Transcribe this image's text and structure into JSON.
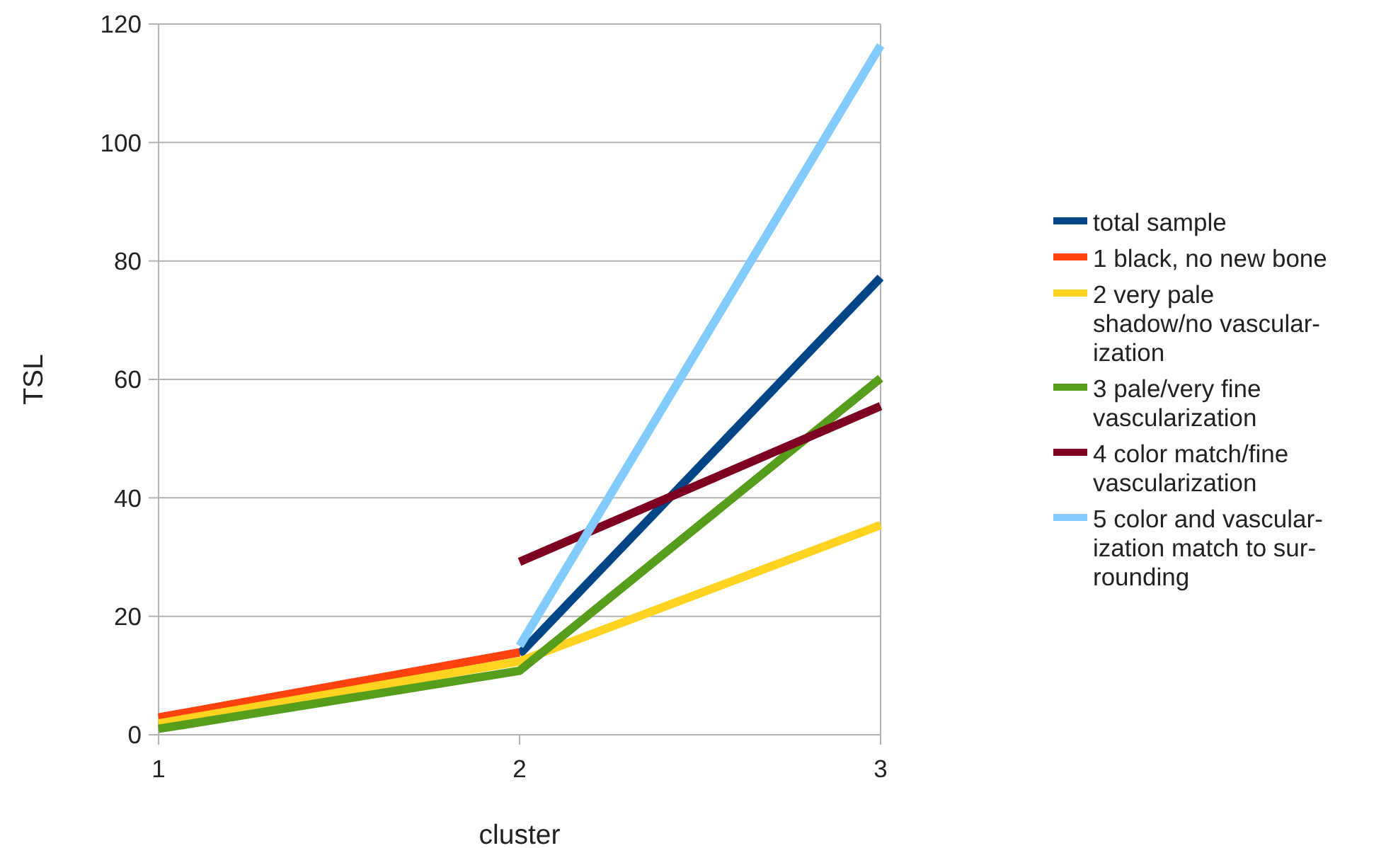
{
  "chart_data": {
    "type": "line",
    "xlabel": "cluster",
    "ylabel": "TSL",
    "x": [
      1,
      2,
      3
    ],
    "xlim": [
      1,
      3
    ],
    "xticks": [
      1,
      2,
      3
    ],
    "ylim": [
      0,
      120
    ],
    "yticks": [
      0,
      20,
      40,
      60,
      80,
      100,
      120
    ],
    "grid": "y",
    "legend": "right",
    "marker": "none",
    "line_style": "solid",
    "series": [
      {
        "name": "total sample",
        "color": "#004586",
        "values": [
          null,
          13.6,
          77.2
        ]
      },
      {
        "name": "1 black, no new bone",
        "color": "#ff420e",
        "values": [
          2.9,
          13.9,
          null
        ]
      },
      {
        "name": "2 very pale\nshadow/no vascular-\nization",
        "color": "#ffd320",
        "values": [
          1.9,
          12.4,
          35.4
        ]
      },
      {
        "name": "3 pale/very fine\nvascularization",
        "color": "#579d1c",
        "values": [
          1.0,
          10.8,
          60.2
        ]
      },
      {
        "name": "4 color match/fine\nvascularization",
        "color": "#7e0021",
        "values": [
          null,
          29.2,
          55.5
        ]
      },
      {
        "name": "5 color and vascular-\nization match to sur-\nrounding",
        "color": "#83caff",
        "values": [
          null,
          15.0,
          116.4
        ]
      }
    ]
  }
}
